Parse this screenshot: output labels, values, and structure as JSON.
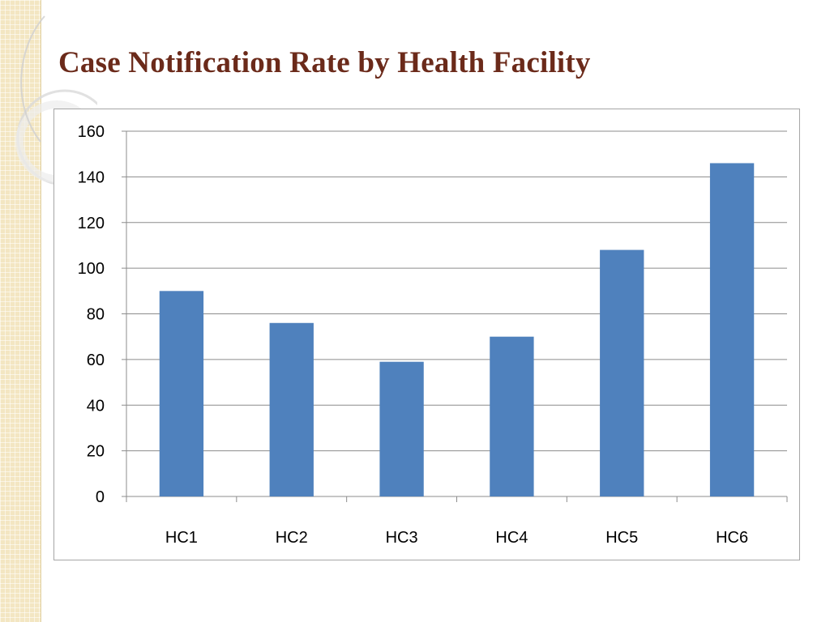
{
  "slide": {
    "title": "Case Notification Rate by Health Facility"
  },
  "colors": {
    "bar": "#4f81bd",
    "title": "#6b2a1a",
    "gridline": "#8c8c8c"
  },
  "chart_data": {
    "type": "bar",
    "title": "",
    "xlabel": "",
    "ylabel": "",
    "categories": [
      "HC1",
      "HC2",
      "HC3",
      "HC4",
      "HC5",
      "HC6"
    ],
    "values": [
      90,
      76,
      59,
      70,
      108,
      146
    ],
    "ylim": [
      0,
      160
    ],
    "yticks": [
      0,
      20,
      40,
      60,
      80,
      100,
      120,
      140,
      160
    ],
    "grid": true,
    "legend": "none"
  }
}
